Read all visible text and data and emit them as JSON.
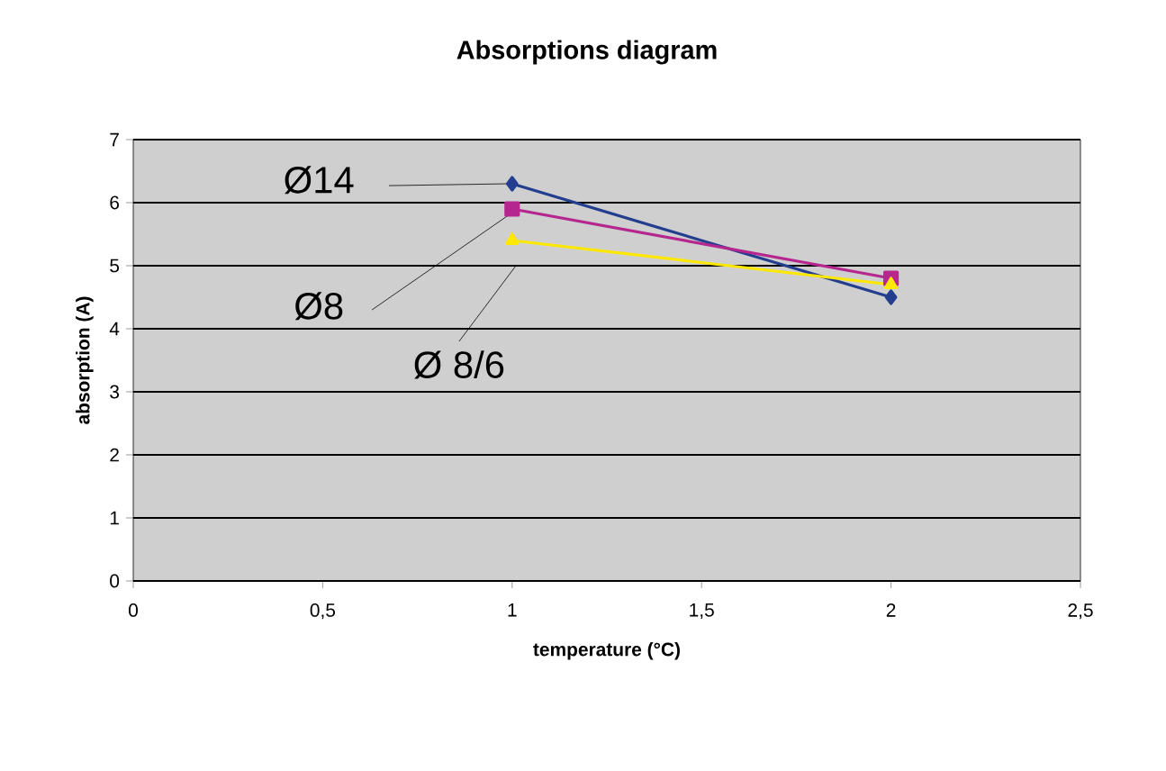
{
  "chart_data": {
    "type": "line",
    "title": "Absorptions diagram",
    "xlabel": "temperature (°C)",
    "ylabel": "absorption (A)",
    "x": [
      1,
      2
    ],
    "series": [
      {
        "name": "Ø14",
        "color": "#233d8f",
        "marker": "diamond",
        "values": [
          6.3,
          4.5
        ]
      },
      {
        "name": "Ø8",
        "color": "#b5278f",
        "marker": "square",
        "values": [
          5.9,
          4.8
        ]
      },
      {
        "name": "Ø 8/6",
        "color": "#ffe800",
        "marker": "triangle",
        "values": [
          5.4,
          4.7
        ]
      }
    ],
    "xlim": [
      0,
      2.5
    ],
    "ylim": [
      0,
      7
    ],
    "xticks": [
      0,
      {
        "value": 0.5,
        "label": "0,5"
      },
      1,
      {
        "value": 1.5,
        "label": "1,5"
      },
      2,
      {
        "value": 2.5,
        "label": "2,5"
      }
    ],
    "yticks": [
      0,
      1,
      2,
      3,
      4,
      5,
      6,
      7
    ],
    "grid": "y",
    "line_style": "solid"
  }
}
